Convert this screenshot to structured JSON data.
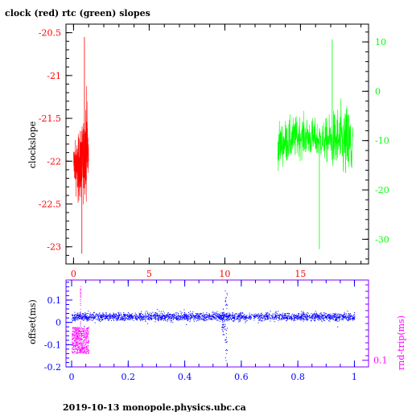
{
  "title": "clock (red) rtc (green) slopes",
  "footer": "2019-10-13 monopole.physics.ubc.ca",
  "colors": {
    "clock": "#ff0000",
    "rtc": "#00ff00",
    "axis_left_top": "#ff0000",
    "axis_right_top": "#00ff00",
    "offset": "#0000ff",
    "rndtrip": "#ff00ff",
    "frame": "#000000",
    "bottom_frame": "#8000ff"
  },
  "chart_data": [
    {
      "type": "line",
      "title": "clock (red) rtc (green) slopes",
      "ylabel": "clockslope",
      "xlim": [
        -0.5,
        19.5
      ],
      "ylim": [
        -23.2,
        -20.4
      ],
      "y2lim": [
        -35,
        13.6
      ],
      "x_ticks": [
        "0",
        "5",
        "10",
        "15"
      ],
      "y_ticks": [
        "-20.5",
        "-21",
        "-21.5",
        "-22",
        "-22.5",
        "-23"
      ],
      "y2_ticks": [
        "10",
        "0",
        "-10",
        "-20",
        "-30"
      ],
      "series": [
        {
          "name": "clock",
          "axis": "left",
          "x_range": [
            0.0,
            1.0
          ],
          "center": -21.95,
          "envelope": [
            [
              0.0,
              -21.6,
              -22.4
            ],
            [
              0.3,
              -21.3,
              -22.9
            ],
            [
              0.6,
              -21.1,
              -22.9
            ],
            [
              0.9,
              -20.55,
              -22.95
            ],
            [
              1.0,
              -21.7,
              -22.3
            ]
          ],
          "extremes": {
            "max": -20.55,
            "min": -23.08
          }
        },
        {
          "name": "rtc",
          "axis": "right",
          "x_range": [
            13.5,
            18.5
          ],
          "center": -7.5,
          "envelope": [
            [
              13.5,
              -1,
              -21
            ],
            [
              15.0,
              0,
              -18
            ],
            [
              16.5,
              -2,
              -18
            ],
            [
              17.5,
              5,
              -25
            ],
            [
              18.4,
              8,
              -31
            ],
            [
              18.5,
              -8,
              -10
            ]
          ],
          "extremes": {
            "max": 10.5,
            "min": -32.0
          }
        }
      ]
    },
    {
      "type": "scatter",
      "ylabel": "offset(ms)",
      "y2label": "rnd-trip(ms)",
      "xlim": [
        -0.02,
        1.05
      ],
      "ylim": [
        -0.2,
        0.19
      ],
      "x_ticks": [
        "0",
        "0.2",
        "0.4",
        "0.6",
        "0.8",
        "1"
      ],
      "y_ticks": [
        "0.1",
        "0",
        "-0.1",
        "-0.2"
      ],
      "y2_ticks": [
        "0.1"
      ],
      "series": [
        {
          "name": "offset",
          "x_range": [
            0.0,
            1.0
          ],
          "center": 0.025,
          "band": [
            0.0,
            0.05
          ],
          "features": [
            {
              "x": 0.535,
              "y_min": -0.06,
              "y_max": 0.06
            },
            {
              "x": 0.545,
              "y_min": -0.19,
              "y_max": 0.16
            }
          ]
        },
        {
          "name": "rnd-trip",
          "x_range": [
            0.0,
            0.06
          ],
          "band_offset_units": [
            -0.14,
            -0.02
          ],
          "spike_max_offset_units": 0.17
        }
      ]
    }
  ]
}
